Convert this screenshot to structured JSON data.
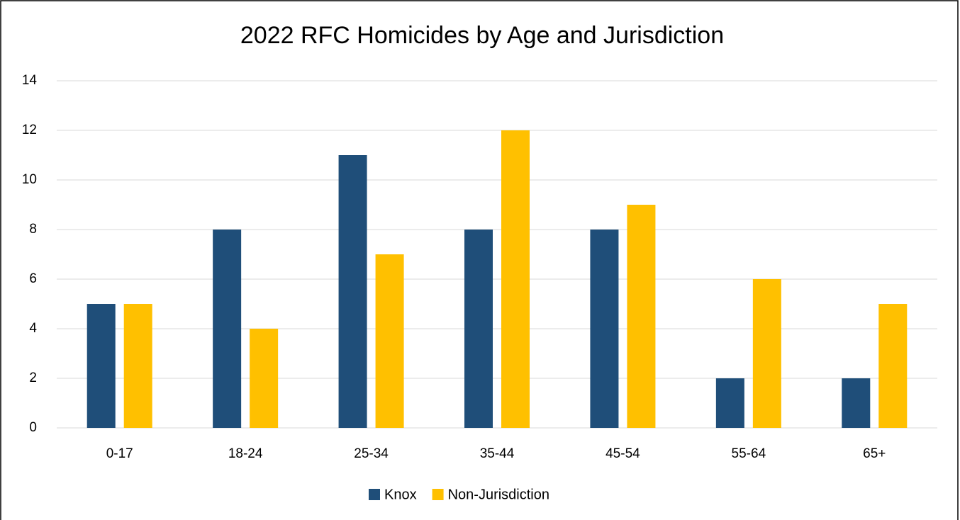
{
  "chart_data": {
    "type": "bar",
    "title": "2022 RFC Homicides by Age and Jurisdiction",
    "categories": [
      "0-17",
      "18-24",
      "25-34",
      "35-44",
      "45-54",
      "55-64",
      "65+"
    ],
    "series": [
      {
        "name": "Knox",
        "color": "#1f4e79",
        "values": [
          5,
          8,
          11,
          8,
          8,
          2,
          2
        ]
      },
      {
        "name": "Non-Jurisdiction",
        "color": "#ffc000",
        "values": [
          5,
          4,
          7,
          12,
          9,
          6,
          5
        ]
      }
    ],
    "ylim": [
      0,
      14
    ],
    "yticks": [
      0,
      2,
      4,
      6,
      8,
      10,
      12,
      14
    ],
    "grid": true,
    "legend": "bottom"
  }
}
